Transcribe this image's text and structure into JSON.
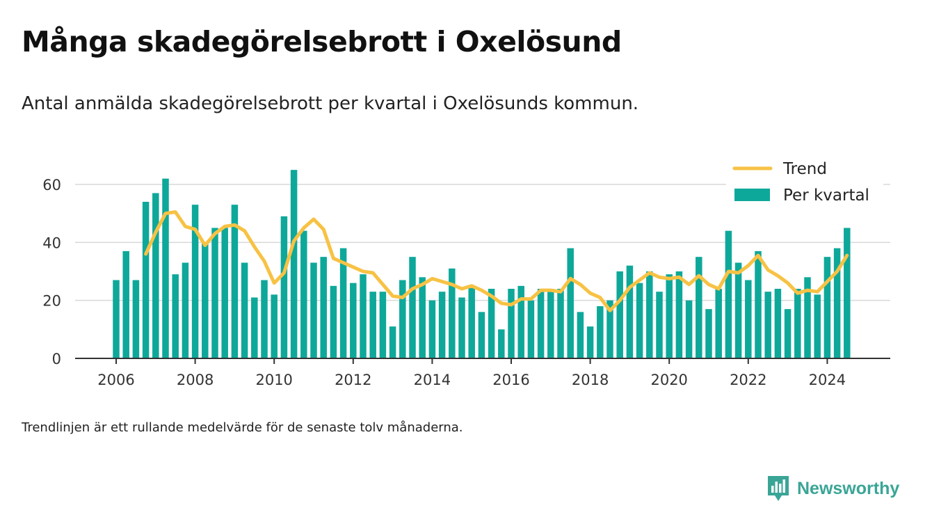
{
  "title": "Många skadegörelsebrott i Oxelösund",
  "subtitle": "Antal anmälda skadegörelsebrott per kvartal i Oxelösunds kommun.",
  "note": "Trendlinjen är ett rullande medelvärde för de senaste tolv månaderna.",
  "brand": {
    "name": "Newsworthy",
    "icon": "newsworthy-logo-icon",
    "color": "#3aa596"
  },
  "colors": {
    "bars": "#0ea89a",
    "trend": "#f7c244",
    "grid": "#d9d9d9",
    "axis": "#333333"
  },
  "chart_data": {
    "type": "bar",
    "title": "",
    "xlabel": "",
    "ylabel": "",
    "ylim": [
      0,
      70
    ],
    "yticks": [
      0,
      20,
      40,
      60
    ],
    "xticks": [
      "2006",
      "2008",
      "2010",
      "2012",
      "2014",
      "2016",
      "2018",
      "2020",
      "2022",
      "2024"
    ],
    "grid": true,
    "legend_position": "top-right",
    "categories": [
      "2006 Q1",
      "2006 Q2",
      "2006 Q3",
      "2006 Q4",
      "2007 Q1",
      "2007 Q2",
      "2007 Q3",
      "2007 Q4",
      "2008 Q1",
      "2008 Q2",
      "2008 Q3",
      "2008 Q4",
      "2009 Q1",
      "2009 Q2",
      "2009 Q3",
      "2009 Q4",
      "2010 Q1",
      "2010 Q2",
      "2010 Q3",
      "2010 Q4",
      "2011 Q1",
      "2011 Q2",
      "2011 Q3",
      "2011 Q4",
      "2012 Q1",
      "2012 Q2",
      "2012 Q3",
      "2012 Q4",
      "2013 Q1",
      "2013 Q2",
      "2013 Q3",
      "2013 Q4",
      "2014 Q1",
      "2014 Q2",
      "2014 Q3",
      "2014 Q4",
      "2015 Q1",
      "2015 Q2",
      "2015 Q3",
      "2015 Q4",
      "2016 Q1",
      "2016 Q2",
      "2016 Q3",
      "2016 Q4",
      "2017 Q1",
      "2017 Q2",
      "2017 Q3",
      "2017 Q4",
      "2018 Q1",
      "2018 Q2",
      "2018 Q3",
      "2018 Q4",
      "2019 Q1",
      "2019 Q2",
      "2019 Q3",
      "2019 Q4",
      "2020 Q1",
      "2020 Q2",
      "2020 Q3",
      "2020 Q4",
      "2021 Q1",
      "2021 Q2",
      "2021 Q3",
      "2021 Q4",
      "2022 Q1",
      "2022 Q2",
      "2022 Q3",
      "2022 Q4",
      "2023 Q1",
      "2023 Q2",
      "2023 Q3",
      "2023 Q4",
      "2024 Q1",
      "2024 Q2",
      "2024 Q3"
    ],
    "series": [
      {
        "name": "Per kvartal",
        "type": "bar",
        "values": [
          27,
          37,
          27,
          54,
          57,
          62,
          29,
          33,
          53,
          40,
          45,
          45,
          53,
          33,
          21,
          27,
          22,
          49,
          65,
          44,
          33,
          35,
          25,
          38,
          26,
          29,
          23,
          23,
          11,
          27,
          35,
          28,
          20,
          23,
          31,
          21,
          25,
          16,
          24,
          10,
          24,
          25,
          20,
          24,
          24,
          24,
          38,
          16,
          11,
          18,
          20,
          30,
          32,
          26,
          30,
          23,
          29,
          30,
          20,
          35,
          17,
          24,
          44,
          33,
          27,
          37,
          23,
          24,
          17,
          24,
          28,
          22,
          35,
          38,
          45
        ]
      },
      {
        "name": "Trend",
        "type": "line",
        "values": [
          null,
          null,
          null,
          36,
          43.5,
          50,
          50.5,
          45.5,
          44.5,
          39,
          43,
          45.5,
          46,
          44,
          38.5,
          33.5,
          26,
          29.5,
          40.5,
          45,
          48,
          44.5,
          34.5,
          33,
          31.5,
          30,
          29.5,
          25.5,
          21.5,
          21,
          24,
          25.5,
          27.5,
          26.5,
          25.5,
          24,
          25,
          23.5,
          21.5,
          19,
          18.5,
          20.5,
          20.5,
          23.5,
          23.5,
          23,
          27.5,
          25.5,
          22.5,
          21,
          16.5,
          20,
          24.5,
          27,
          29.5,
          28,
          27.5,
          28,
          25.5,
          28.5,
          25.5,
          24,
          30,
          29.5,
          32,
          35.5,
          30.5,
          28.5,
          26,
          22.5,
          23.5,
          23,
          26.5,
          30,
          35.5
        ]
      }
    ]
  }
}
